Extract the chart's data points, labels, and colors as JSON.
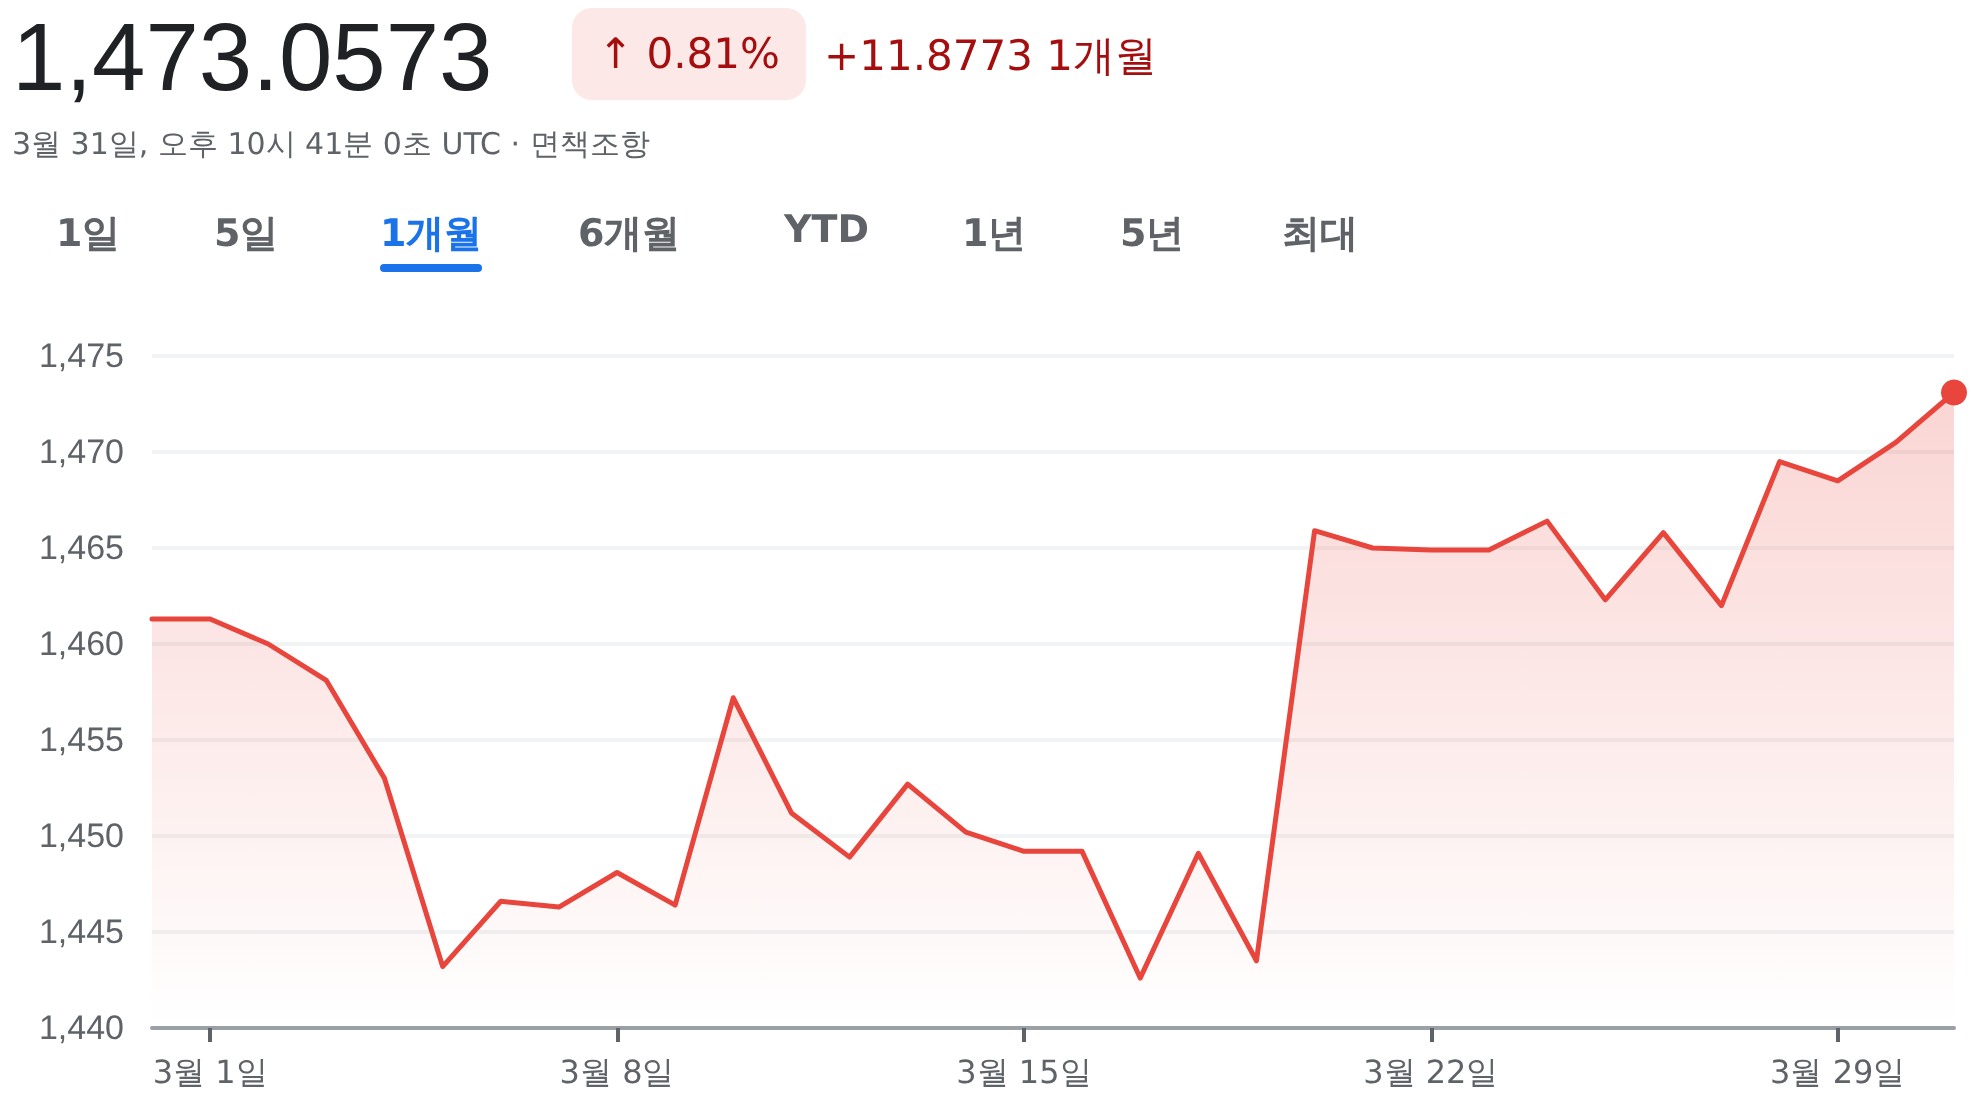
{
  "chart_data": {
    "type": "area",
    "title": "1,473.0573",
    "subtitle": "3월 31일, 오후 10시 41분 0초 UTC · 면책조항",
    "annotations": [
      "↑ 0.81%",
      "+11.8773 1개월",
      "1일",
      "5일",
      "1개월",
      "6개월",
      "YTD",
      "1년",
      "5년",
      "최대"
    ],
    "categories": [
      null,
      "3월 1일",
      null,
      null,
      null,
      null,
      null,
      null,
      "3월 8일",
      null,
      null,
      null,
      null,
      null,
      null,
      "3월 15일",
      null,
      null,
      null,
      null,
      null,
      null,
      "3월 22일",
      null,
      null,
      null,
      null,
      null,
      null,
      "3월 29일",
      null,
      null
    ],
    "series": [
      {
        "color": "#e8453c",
        "values": [
          1461.3,
          1461.3,
          1460.0,
          1458.1,
          1453.0,
          1443.2,
          1446.6,
          1446.3,
          1448.1,
          1446.4,
          1457.2,
          1451.2,
          1448.9,
          1452.7,
          1450.2,
          1449.2,
          1449.2,
          1442.6,
          1449.1,
          1443.5,
          1465.9,
          1465.0,
          1464.9,
          1464.9,
          1466.4,
          1462.3,
          1465.8,
          1462.0,
          1469.5,
          1468.5,
          1470.5,
          1473.1
        ]
      }
    ],
    "ylim": [
      1440,
      1475
    ],
    "yticks": [
      {
        "value": 1440,
        "label": "1,440"
      },
      {
        "value": 1445,
        "label": "1,445"
      },
      {
        "value": 1450,
        "label": "1,450"
      },
      {
        "value": 1455,
        "label": "1,455"
      },
      {
        "value": 1460,
        "label": "1,460"
      },
      {
        "value": 1465,
        "label": "1,465"
      },
      {
        "value": 1470,
        "label": "1,470"
      },
      {
        "value": 1475,
        "label": "1,475"
      }
    ],
    "grid": "y"
  }
}
